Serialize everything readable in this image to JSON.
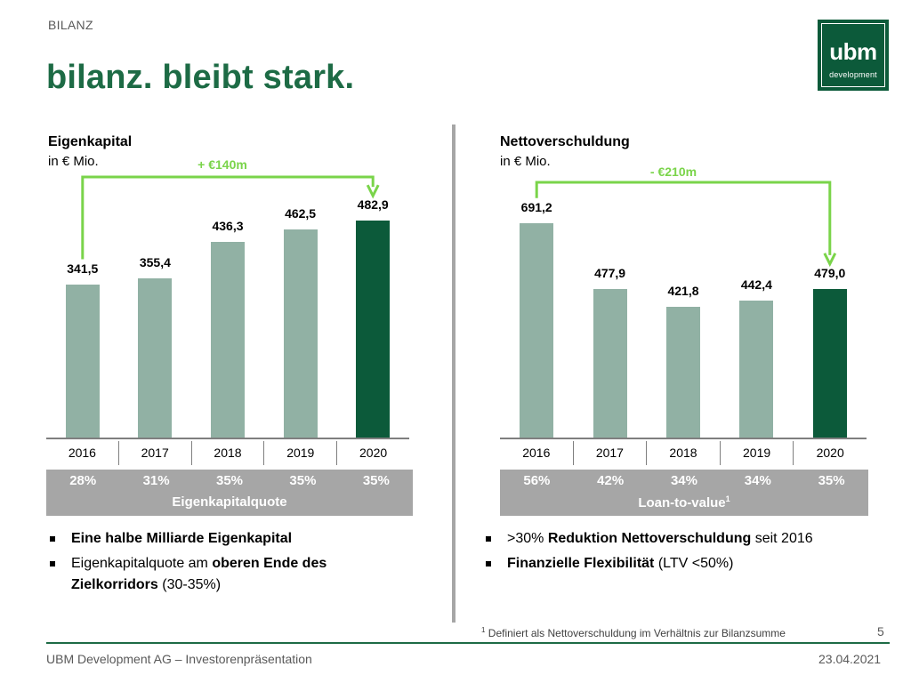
{
  "header": {
    "section_label": "BILANZ",
    "title": "bilanz. bleibt stark.",
    "logo": {
      "word": "ubm",
      "sub": "development",
      "color": "#0c5a3a"
    }
  },
  "colors": {
    "bar_light": "#91b1a4",
    "bar_dark": "#0c5a3a",
    "arrow": "#7ad44a",
    "box_grey": "#a6a6a6",
    "title_green": "#1d6b45"
  },
  "chart_data": [
    {
      "type": "bar",
      "title": "Eigenkapital",
      "unit": "in € Mio.",
      "categories": [
        "2016",
        "2017",
        "2018",
        "2019",
        "2020"
      ],
      "values": [
        341.5,
        355.4,
        436.3,
        462.5,
        482.9
      ],
      "value_labels": [
        "341,5",
        "355,4",
        "436,3",
        "462,5",
        "482,9"
      ],
      "highlight_index": 4,
      "delta_label": "+ €140m",
      "delta_from": 0,
      "delta_to": 4,
      "ratio_values": [
        "28%",
        "31%",
        "35%",
        "35%",
        "35%"
      ],
      "ratio_label": "Eigenkapitalquote"
    },
    {
      "type": "bar",
      "title": "Nettoverschuldung",
      "unit": "in € Mio.",
      "categories": [
        "2016",
        "2017",
        "2018",
        "2019",
        "2020"
      ],
      "values": [
        691.2,
        477.9,
        421.8,
        442.4,
        479.0
      ],
      "value_labels": [
        "691,2",
        "477,9",
        "421,8",
        "442,4",
        "479,0"
      ],
      "highlight_index": 4,
      "delta_label": "- €210m",
      "delta_from": 0,
      "delta_to": 4,
      "ratio_values": [
        "56%",
        "42%",
        "34%",
        "34%",
        "35%"
      ],
      "ratio_label": "Loan-to-value",
      "ratio_label_sup": "1"
    }
  ],
  "left_bullets": [
    {
      "parts": [
        {
          "text": "Eine halbe Milliarde Eigenkapital",
          "bold": true
        }
      ]
    },
    {
      "parts": [
        {
          "text": "Eigenkapitalquote am ",
          "bold": false
        },
        {
          "text": "oberen Ende des Zielkorridors",
          "bold": true
        },
        {
          "text": " (30-35%)",
          "bold": false
        }
      ]
    }
  ],
  "right_bullets": [
    {
      "parts": [
        {
          "text": ">30% ",
          "bold": false
        },
        {
          "text": "Reduktion Nettoverschuldung",
          "bold": true
        },
        {
          "text": " seit 2016",
          "bold": false
        }
      ]
    },
    {
      "parts": [
        {
          "text": "Finanzielle Flexibilität",
          "bold": true
        },
        {
          "text": " (LTV <50%)",
          "bold": false
        }
      ]
    }
  ],
  "footnote": {
    "marker": "1",
    "text": "Definiert als Nettoverschuldung im Verhältnis zur Bilanzsumme"
  },
  "footer": {
    "left": "UBM Development AG – Investorenpräsentation",
    "right": "23.04.2021",
    "page": "5"
  }
}
